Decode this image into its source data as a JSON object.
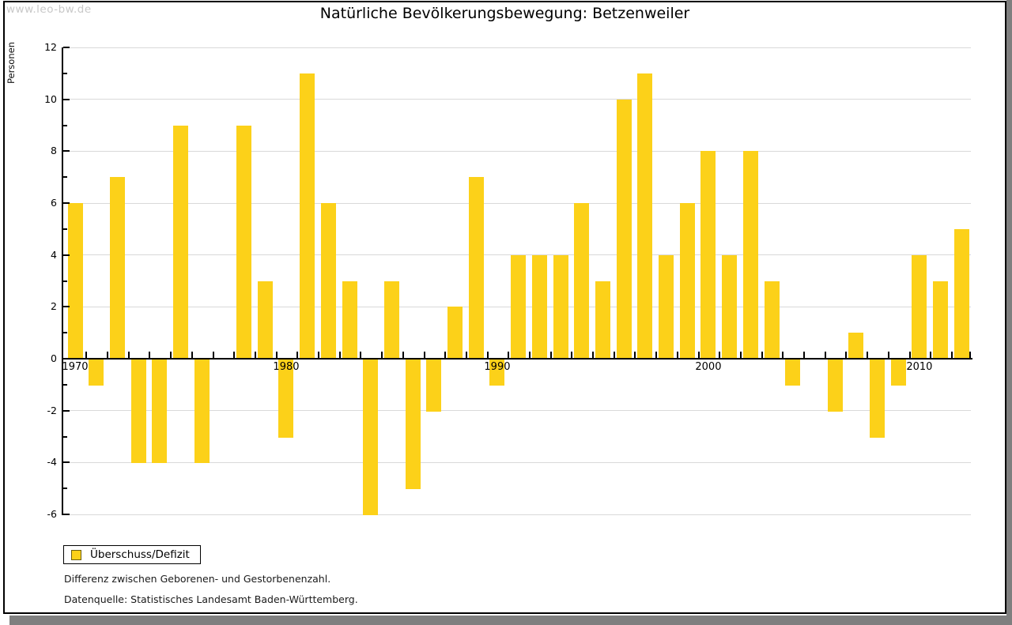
{
  "watermark": "www.leo-bw.de",
  "title": "Natürliche Bevölkerungsbewegung: Betzenweiler",
  "legend": {
    "label": "Überschuss/Defizit"
  },
  "footnotes": [
    "Differenz zwischen Geborenen- und Gestorbenenzahl.",
    "Datenquelle: Statistisches Landesamt Baden-Württemberg."
  ],
  "colors": {
    "bar": "#FCD119",
    "gridline": "#d9d9d9",
    "axis": "#000000",
    "shadow": "#7f7f7f",
    "watermark": "#c8c8c8"
  },
  "chart_data": {
    "type": "bar",
    "title": "Natürliche Bevölkerungsbewegung: Betzenweiler",
    "xlabel": "",
    "ylabel": "Personen",
    "series_name": "Überschuss/Defizit",
    "ylim": [
      -6,
      12
    ],
    "ytick_step": 2,
    "grid": true,
    "legend_position": "bottom-left",
    "x_decade_labels": [
      1970,
      1980,
      1990,
      2000,
      2010
    ],
    "years": [
      1970,
      1971,
      1972,
      1973,
      1974,
      1975,
      1976,
      1977,
      1978,
      1979,
      1980,
      1981,
      1982,
      1983,
      1984,
      1985,
      1986,
      1987,
      1988,
      1989,
      1990,
      1991,
      1992,
      1993,
      1994,
      1995,
      1996,
      1997,
      1998,
      1999,
      2000,
      2001,
      2002,
      2003,
      2004,
      2005,
      2006,
      2007,
      2008,
      2009,
      2010,
      2011,
      2012
    ],
    "values": [
      6,
      -1,
      7,
      -4,
      -4,
      9,
      -4,
      0,
      9,
      3,
      -3,
      11,
      6,
      3,
      -6,
      3,
      -5,
      -2,
      2,
      7,
      -1,
      4,
      4,
      4,
      6,
      3,
      10,
      11,
      4,
      6,
      8,
      4,
      8,
      3,
      -1,
      0,
      -2,
      1,
      -3,
      -1,
      4,
      3,
      5
    ]
  }
}
